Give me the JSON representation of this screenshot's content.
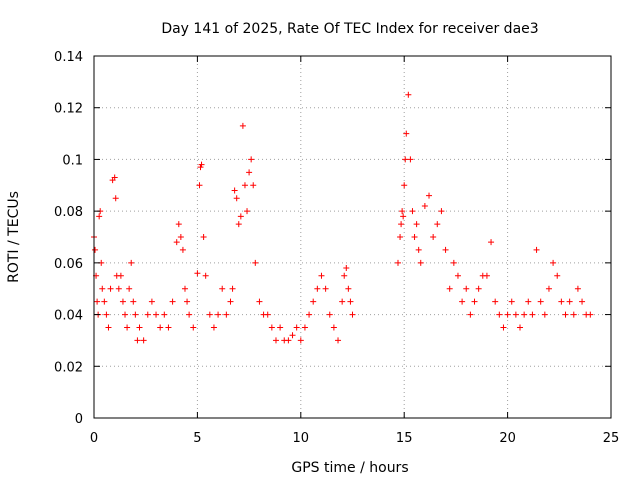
{
  "chart_data": {
    "type": "scatter",
    "title": "Day 141 of 2025, Rate Of TEC Index for receiver dae3",
    "xlabel": "GPS time / hours",
    "ylabel": "ROTI / TECUs",
    "xlim": [
      0,
      25
    ],
    "ylim": [
      0,
      0.14
    ],
    "xticks": [
      "0",
      "5",
      "10",
      "15",
      "20",
      "25"
    ],
    "yticks": [
      "0",
      "0.02",
      "0.04",
      "0.06",
      "0.08",
      "0.1",
      "0.12",
      "0.14"
    ],
    "grid": true,
    "marker": "+",
    "color": "#ff0000",
    "series": [
      {
        "x": [
          0.0,
          0.05,
          0.1,
          0.15,
          0.2,
          0.25,
          0.3,
          0.35,
          0.4,
          0.5,
          0.6,
          0.7,
          0.8,
          0.9,
          1.0,
          1.05,
          1.1,
          1.2,
          1.3,
          1.4,
          1.5,
          1.6,
          1.7,
          1.8,
          1.9,
          2.0,
          2.1,
          2.2,
          2.4,
          2.6,
          2.8,
          3.0,
          3.2,
          3.4,
          3.6,
          3.8,
          4.0,
          4.1,
          4.2,
          4.3,
          4.4,
          4.5,
          4.6,
          4.8,
          5.0,
          5.1,
          5.15,
          5.2,
          5.3,
          5.4,
          5.6,
          5.8,
          6.0,
          6.2,
          6.4,
          6.6,
          6.7,
          6.8,
          6.9,
          7.0,
          7.1,
          7.2,
          7.3,
          7.4,
          7.5,
          7.6,
          7.7,
          7.8,
          8.0,
          8.2,
          8.4,
          8.6,
          8.8,
          9.0,
          9.2,
          9.4,
          9.6,
          9.8,
          10.0,
          10.2,
          10.4,
          10.6,
          10.8,
          11.0,
          11.2,
          11.4,
          11.6,
          11.8,
          12.0,
          12.1,
          12.2,
          12.3,
          12.4,
          12.5,
          14.7,
          14.8,
          14.85,
          14.9,
          14.95,
          15.0,
          15.05,
          15.1,
          15.2,
          15.3,
          15.4,
          15.5,
          15.6,
          15.7,
          15.8,
          16.0,
          16.2,
          16.4,
          16.6,
          16.8,
          17.0,
          17.2,
          17.4,
          17.6,
          17.8,
          18.0,
          18.2,
          18.4,
          18.6,
          18.8,
          19.0,
          19.2,
          19.4,
          19.6,
          19.8,
          20.0,
          20.2,
          20.4,
          20.6,
          20.8,
          21.0,
          21.2,
          21.4,
          21.6,
          21.8,
          22.0,
          22.2,
          22.4,
          22.6,
          22.8,
          23.0,
          23.2,
          23.4,
          23.6,
          23.8,
          24.0
        ],
        "y": [
          0.07,
          0.065,
          0.055,
          0.045,
          0.04,
          0.078,
          0.08,
          0.06,
          0.05,
          0.045,
          0.04,
          0.035,
          0.05,
          0.092,
          0.093,
          0.085,
          0.055,
          0.05,
          0.055,
          0.045,
          0.04,
          0.035,
          0.05,
          0.06,
          0.045,
          0.04,
          0.03,
          0.035,
          0.03,
          0.04,
          0.045,
          0.04,
          0.035,
          0.04,
          0.035,
          0.045,
          0.068,
          0.075,
          0.07,
          0.065,
          0.05,
          0.045,
          0.04,
          0.035,
          0.056,
          0.09,
          0.097,
          0.098,
          0.07,
          0.055,
          0.04,
          0.035,
          0.04,
          0.05,
          0.04,
          0.045,
          0.05,
          0.088,
          0.085,
          0.075,
          0.078,
          0.113,
          0.09,
          0.08,
          0.095,
          0.1,
          0.09,
          0.06,
          0.045,
          0.04,
          0.04,
          0.035,
          0.03,
          0.035,
          0.03,
          0.03,
          0.032,
          0.035,
          0.03,
          0.035,
          0.04,
          0.045,
          0.05,
          0.055,
          0.05,
          0.04,
          0.035,
          0.03,
          0.045,
          0.055,
          0.058,
          0.05,
          0.045,
          0.04,
          0.06,
          0.07,
          0.075,
          0.08,
          0.078,
          0.09,
          0.1,
          0.11,
          0.125,
          0.1,
          0.08,
          0.07,
          0.075,
          0.065,
          0.06,
          0.082,
          0.086,
          0.07,
          0.075,
          0.08,
          0.065,
          0.05,
          0.06,
          0.055,
          0.045,
          0.05,
          0.04,
          0.045,
          0.05,
          0.055,
          0.055,
          0.068,
          0.045,
          0.04,
          0.035,
          0.04,
          0.045,
          0.04,
          0.035,
          0.04,
          0.045,
          0.04,
          0.065,
          0.045,
          0.04,
          0.05,
          0.06,
          0.055,
          0.045,
          0.04,
          0.045,
          0.04,
          0.05,
          0.045,
          0.04,
          0.04
        ]
      }
    ]
  }
}
